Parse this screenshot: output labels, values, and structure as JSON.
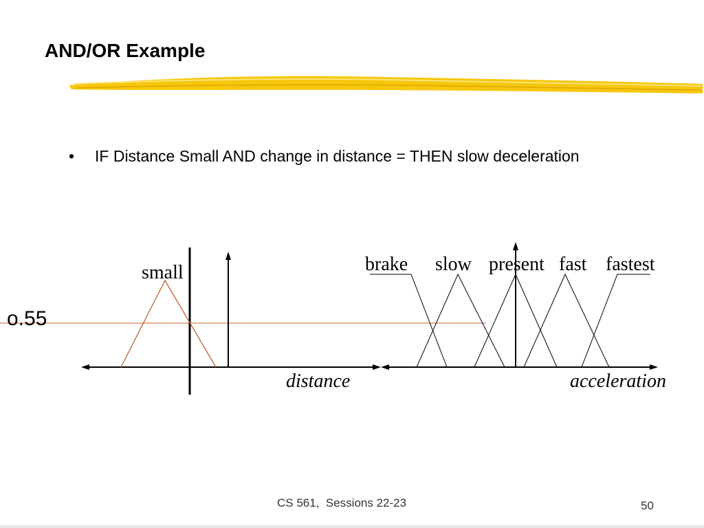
{
  "slide": {
    "title": "AND/OR Example",
    "bullet": {
      "marker": "•",
      "text": "IF Distance Small AND change in distance = THEN slow deceleration"
    },
    "footer": {
      "course": "CS 561,  Sessions 22-23",
      "page": "50"
    }
  },
  "diagram": {
    "level_label": "o.55",
    "distance_axis_label": "distance",
    "acceleration_axis_label": "acceleration",
    "distance_sets": [
      "small"
    ],
    "acceleration_sets": [
      "brake",
      "slow",
      "present",
      "fast",
      "fastest"
    ],
    "membership_cut": 0.55,
    "colors": {
      "highlight": "#f5c400",
      "fuzzy_set_small": "#c0622d",
      "cut_line": "#c0622d",
      "axes": "#000000"
    }
  }
}
